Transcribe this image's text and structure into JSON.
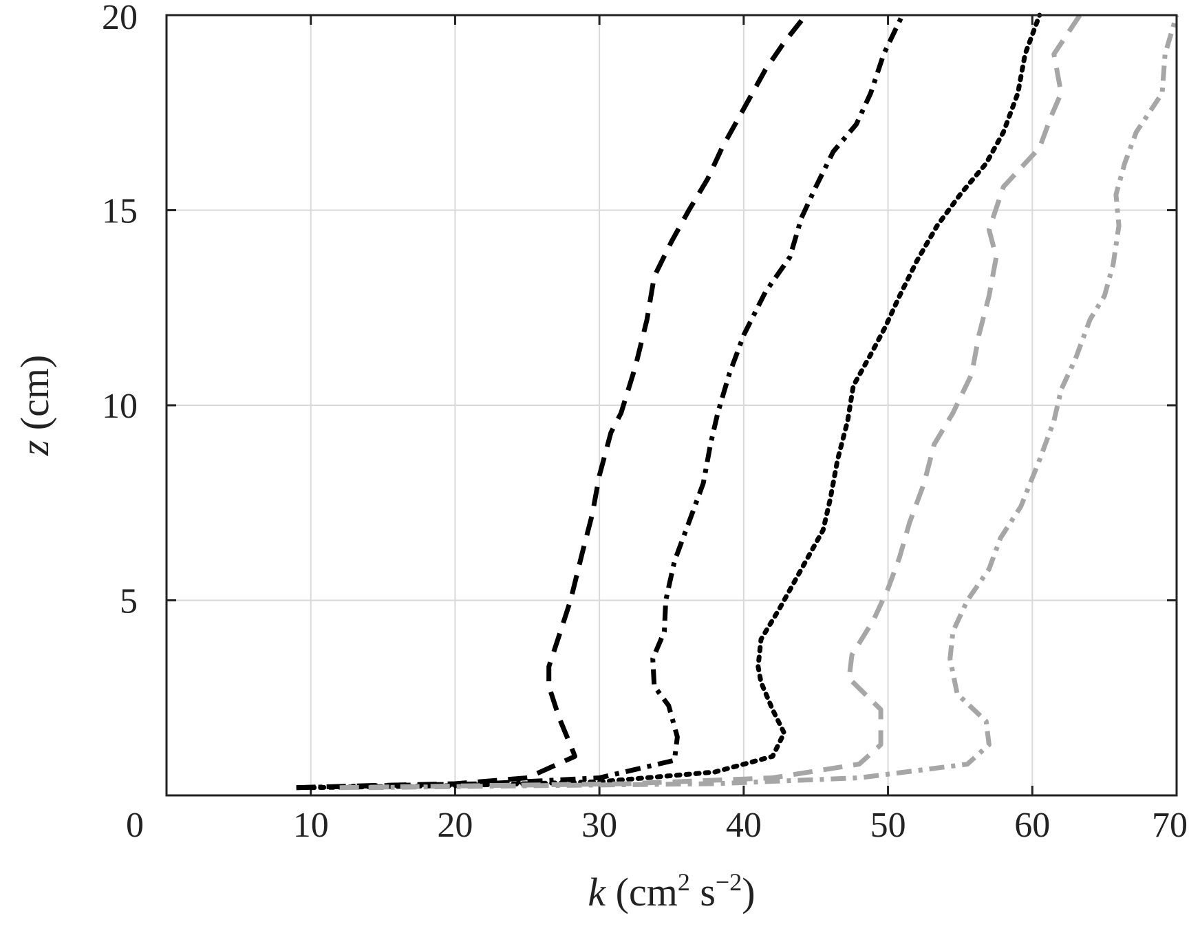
{
  "chart_data": {
    "type": "line",
    "title": "",
    "xlabel": {
      "var": "k",
      "unit_open": " (cm",
      "sup1": "2",
      "unit_mid": " s",
      "sup2": "−2",
      "unit_close": ")"
    },
    "ylabel": {
      "var": "z",
      "unit": " (cm)"
    },
    "xlim": [
      0,
      70
    ],
    "ylim": [
      0,
      20
    ],
    "x_ticks": [
      0,
      10,
      20,
      30,
      40,
      50,
      60,
      70
    ],
    "y_ticks": [
      5,
      10,
      15,
      20
    ],
    "grid": true,
    "legend": "none",
    "series": [
      {
        "color": "#000000",
        "dash": "dashed",
        "points": [
          [
            9,
            0.2
          ],
          [
            14,
            0.25
          ],
          [
            20,
            0.3
          ],
          [
            25,
            0.45
          ],
          [
            28.3,
            1.0
          ],
          [
            28.2,
            1.1
          ],
          [
            27.2,
            2.0
          ],
          [
            26.5,
            2.8
          ],
          [
            26.5,
            3.3
          ],
          [
            27.3,
            4.2
          ],
          [
            28.0,
            5.0
          ],
          [
            28.8,
            6.2
          ],
          [
            29.5,
            7.2
          ],
          [
            30.0,
            8.2
          ],
          [
            30.8,
            9.3
          ],
          [
            31.5,
            9.8
          ],
          [
            32.5,
            11.0
          ],
          [
            33.3,
            12.2
          ],
          [
            33.8,
            13.3
          ],
          [
            35.0,
            14.2
          ],
          [
            36.2,
            15.0
          ],
          [
            37.5,
            15.8
          ],
          [
            38.5,
            16.6
          ],
          [
            40.0,
            17.6
          ],
          [
            41.5,
            18.6
          ],
          [
            42.8,
            19.3
          ],
          [
            44.3,
            20.0
          ]
        ]
      },
      {
        "color": "#000000",
        "dash": "dashdot",
        "points": [
          [
            9,
            0.2
          ],
          [
            15,
            0.25
          ],
          [
            22,
            0.3
          ],
          [
            30,
            0.45
          ],
          [
            35.2,
            0.9
          ],
          [
            35.4,
            1.5
          ],
          [
            34.8,
            2.3
          ],
          [
            33.8,
            2.8
          ],
          [
            33.7,
            3.5
          ],
          [
            34.5,
            4.2
          ],
          [
            34.6,
            5.0
          ],
          [
            35.2,
            6.0
          ],
          [
            36.2,
            7.0
          ],
          [
            37.2,
            8.0
          ],
          [
            37.7,
            9.0
          ],
          [
            38.2,
            9.8
          ],
          [
            39.0,
            10.8
          ],
          [
            40.0,
            11.8
          ],
          [
            41.5,
            12.9
          ],
          [
            43.2,
            13.8
          ],
          [
            44.0,
            14.8
          ],
          [
            45.0,
            15.6
          ],
          [
            46.2,
            16.5
          ],
          [
            47.8,
            17.2
          ],
          [
            48.8,
            18.0
          ],
          [
            49.7,
            19.0
          ],
          [
            51.0,
            20.0
          ]
        ]
      },
      {
        "color": "#000000",
        "dash": "dotted",
        "points": [
          [
            10,
            0.2
          ],
          [
            20,
            0.25
          ],
          [
            30,
            0.35
          ],
          [
            38,
            0.6
          ],
          [
            42.0,
            1.0
          ],
          [
            42.8,
            1.6
          ],
          [
            42.0,
            2.2
          ],
          [
            41.2,
            2.9
          ],
          [
            41.0,
            3.3
          ],
          [
            41.2,
            4.0
          ],
          [
            42.5,
            4.8
          ],
          [
            44.0,
            5.8
          ],
          [
            45.5,
            6.8
          ],
          [
            46.0,
            7.6
          ],
          [
            46.5,
            8.6
          ],
          [
            47.2,
            9.6
          ],
          [
            47.6,
            10.5
          ],
          [
            48.8,
            11.3
          ],
          [
            49.8,
            12.0
          ],
          [
            50.8,
            12.8
          ],
          [
            52.0,
            13.7
          ],
          [
            53.4,
            14.6
          ],
          [
            55.0,
            15.4
          ],
          [
            56.8,
            16.2
          ],
          [
            58.0,
            17.0
          ],
          [
            59.0,
            18.0
          ],
          [
            59.5,
            19.0
          ],
          [
            60.5,
            20.0
          ]
        ]
      },
      {
        "color": "#a6a6a6",
        "dash": "dashed",
        "points": [
          [
            12,
            0.2
          ],
          [
            22,
            0.25
          ],
          [
            32,
            0.3
          ],
          [
            42,
            0.45
          ],
          [
            48,
            0.8
          ],
          [
            49.5,
            1.3
          ],
          [
            49.5,
            2.2
          ],
          [
            47.3,
            3.0
          ],
          [
            47.5,
            3.6
          ],
          [
            49.0,
            4.5
          ],
          [
            50.0,
            5.3
          ],
          [
            50.8,
            6.1
          ],
          [
            51.5,
            7.0
          ],
          [
            52.5,
            8.0
          ],
          [
            53.2,
            9.0
          ],
          [
            54.5,
            9.8
          ],
          [
            55.8,
            10.8
          ],
          [
            56.3,
            11.8
          ],
          [
            57.0,
            12.8
          ],
          [
            57.5,
            13.8
          ],
          [
            57.0,
            14.5
          ],
          [
            58.0,
            15.6
          ],
          [
            60.5,
            16.6
          ],
          [
            61.3,
            17.4
          ],
          [
            62.0,
            18.0
          ],
          [
            61.5,
            19.0
          ],
          [
            63.3,
            20.0
          ]
        ]
      },
      {
        "color": "#a6a6a6",
        "dash": "dashdot",
        "points": [
          [
            14,
            0.2
          ],
          [
            26,
            0.25
          ],
          [
            38,
            0.3
          ],
          [
            48,
            0.45
          ],
          [
            55.5,
            0.8
          ],
          [
            57.0,
            1.3
          ],
          [
            56.8,
            1.9
          ],
          [
            54.8,
            2.6
          ],
          [
            54.3,
            3.5
          ],
          [
            54.5,
            4.2
          ],
          [
            55.5,
            5.0
          ],
          [
            57.0,
            5.8
          ],
          [
            57.8,
            6.6
          ],
          [
            59.2,
            7.4
          ],
          [
            60.5,
            8.6
          ],
          [
            61.5,
            9.6
          ],
          [
            62.0,
            10.4
          ],
          [
            63.0,
            11.2
          ],
          [
            64.0,
            12.2
          ],
          [
            65.0,
            12.8
          ],
          [
            65.6,
            13.6
          ],
          [
            66.0,
            14.6
          ],
          [
            65.8,
            15.4
          ],
          [
            66.4,
            16.2
          ],
          [
            67.2,
            17.0
          ],
          [
            69.0,
            18.0
          ],
          [
            69.2,
            19.0
          ],
          [
            70.0,
            20.0
          ]
        ]
      }
    ]
  }
}
